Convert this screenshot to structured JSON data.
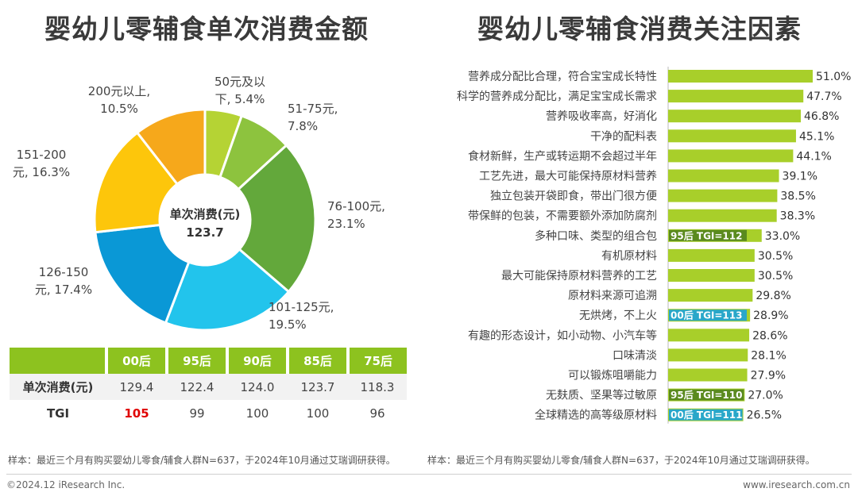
{
  "left_title": "婴幼儿零辅食单次消费金额",
  "right_title": "婴幼儿零辅食消费关注因素",
  "colors": {
    "green_accent": "#8dc21f",
    "bar": "#a8cf2a",
    "tag_dark_bg": "#5a8a1e",
    "tag_teal_bg": "#29a7c9",
    "tgi_highlight": "#e00000"
  },
  "chart_data": [
    {
      "type": "pie",
      "title": "婴幼儿零辅食单次消费金额",
      "center_label": "单次消费(元)",
      "center_value": "123.7",
      "slices": [
        {
          "label_lines": [
            "50元及以",
            "下, 5.4%"
          ],
          "value": 5.4,
          "color": "#b5d334"
        },
        {
          "label_lines": [
            "51-75元,",
            "7.8%"
          ],
          "value": 7.8,
          "color": "#8dc33e"
        },
        {
          "label_lines": [
            "76-100元,",
            "23.1%"
          ],
          "value": 23.1,
          "color": "#63a83b"
        },
        {
          "label_lines": [
            "101-125元,",
            "19.5%"
          ],
          "value": 19.5,
          "color": "#22c4ec"
        },
        {
          "label_lines": [
            "126-150",
            "元, 17.4%"
          ],
          "value": 17.4,
          "color": "#0a98d6"
        },
        {
          "label_lines": [
            "151-200",
            "元, 16.3%"
          ],
          "value": 16.3,
          "color": "#fdc60b"
        },
        {
          "label_lines": [
            "200元以上,",
            "10.5%"
          ],
          "value": 10.5,
          "color": "#f6a81b"
        }
      ]
    },
    {
      "type": "table",
      "columns": [
        "00后",
        "95后",
        "90后",
        "85后",
        "75后"
      ],
      "rows": [
        {
          "header": "单次消费(元)",
          "values": [
            "129.4",
            "122.4",
            "124.0",
            "123.7",
            "118.3"
          ]
        },
        {
          "header": "TGI",
          "values": [
            "105",
            "99",
            "100",
            "100",
            "96"
          ],
          "highlight_index": 0
        }
      ]
    },
    {
      "type": "bar",
      "title": "婴幼儿零辅食消费关注因素",
      "xlim": [
        0,
        51
      ],
      "categories": [
        "营养成分配比合理，符合宝宝成长特性",
        "科学的营养成分配比，满足宝宝成长需求",
        "营养吸收率高，好消化",
        "干净的配料表",
        "食材新鲜，生产或转运期不会超过半年",
        "工艺先进，最大可能保持原材料营养",
        "独立包装开袋即食，带出门很方便",
        "带保鲜的包装，不需要额外添加防腐剂",
        "多种口味、类型的组合包",
        "有机原材料",
        "最大可能保持原材料营养的工艺",
        "原材料来源可追溯",
        "无烘烤，不上火",
        "有趣的形态设计，如小动物、小汽车等",
        "口味清淡",
        "可以锻炼咀嚼能力",
        "无麸质、坚果等过敏原",
        "全球精选的高等级原材料"
      ],
      "values": [
        51.0,
        47.7,
        46.8,
        45.1,
        44.1,
        39.1,
        38.5,
        38.3,
        33.0,
        30.5,
        30.5,
        29.8,
        28.9,
        28.6,
        28.1,
        27.9,
        27.0,
        26.5
      ],
      "value_labels": [
        "51.0%",
        "47.7%",
        "46.8%",
        "45.1%",
        "44.1%",
        "39.1%",
        "38.5%",
        "38.3%",
        "33.0%",
        "30.5%",
        "30.5%",
        "29.8%",
        "28.9%",
        "28.6%",
        "28.1%",
        "27.9%",
        "27.0%",
        "26.5%"
      ],
      "annotations": [
        {
          "index": 8,
          "text": "95后 TGI=112",
          "style": "dark"
        },
        {
          "index": 12,
          "text": "00后 TGI=113",
          "style": "teal"
        },
        {
          "index": 16,
          "text": "95后 TGI=110",
          "style": "dark"
        },
        {
          "index": 17,
          "text": "00后 TGI=111",
          "style": "teal"
        }
      ]
    }
  ],
  "footnote_left": "样本：最近三个月有购买婴幼儿零食/辅食人群N=637，于2024年10月通过艾瑞调研获得。",
  "footnote_right": "样本：最近三个月有购买婴幼儿零食/辅食人群N=637，于2024年10月通过艾瑞调研获得。",
  "copyright": "©2024.12 iResearch Inc.",
  "website": "www.iresearch.com.cn"
}
